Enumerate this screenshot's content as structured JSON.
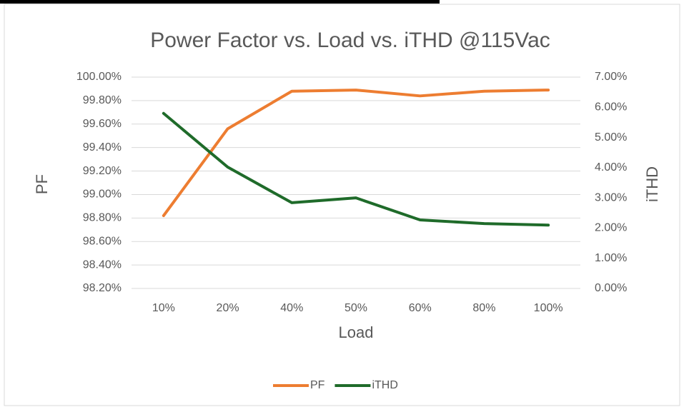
{
  "chart_data": {
    "type": "line",
    "title": "Power Factor vs. Load vs. iTHD @115Vac",
    "x_label": "Load",
    "y_label": "PF",
    "y2_label": "iTHD",
    "categories": [
      "10%",
      "20%",
      "40%",
      "50%",
      "60%",
      "80%",
      "100%"
    ],
    "series": [
      {
        "name": "PF",
        "color": "#ed7d31",
        "values": [
          98.82,
          99.56,
          99.88,
          99.89,
          99.84,
          99.88,
          99.89
        ]
      },
      {
        "name": "iTHD",
        "color": "#1f6b2a",
        "axis": "y2",
        "values": [
          5.8,
          4.02,
          2.84,
          3.0,
          2.27,
          2.15,
          2.1
        ]
      }
    ],
    "ylim": [
      98.2,
      100.0
    ],
    "yticks": [
      {
        "value": 98.2,
        "label": "98.20%"
      },
      {
        "value": 98.4,
        "label": "98.40%"
      },
      {
        "value": 98.6,
        "label": "98.60%"
      },
      {
        "value": 98.8,
        "label": "98.80%"
      },
      {
        "value": 99.0,
        "label": "99.00%"
      },
      {
        "value": 99.2,
        "label": "99.20%"
      },
      {
        "value": 99.4,
        "label": "99.40%"
      },
      {
        "value": 99.6,
        "label": "99.60%"
      },
      {
        "value": 99.8,
        "label": "99.80%"
      },
      {
        "value": 100.0,
        "label": "100.00%"
      }
    ],
    "y2lim": [
      0,
      7
    ],
    "y2ticks": [
      {
        "value": 0,
        "label": "0.00%"
      },
      {
        "value": 1,
        "label": "1.00%"
      },
      {
        "value": 2,
        "label": "2.00%"
      },
      {
        "value": 3,
        "label": "3.00%"
      },
      {
        "value": 4,
        "label": "4.00%"
      },
      {
        "value": 5,
        "label": "5.00%"
      },
      {
        "value": 6,
        "label": "6.00%"
      },
      {
        "value": 7,
        "label": "7.00%"
      }
    ],
    "grid": true,
    "legend": "bottom"
  }
}
